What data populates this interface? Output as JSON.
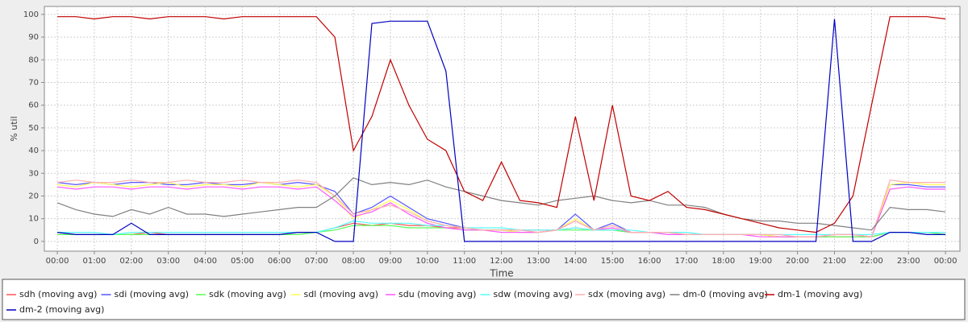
{
  "chart_data": {
    "type": "line",
    "x_label": "Time",
    "y_label": "% util",
    "x": [
      0,
      0.5,
      1,
      1.5,
      2,
      2.5,
      3,
      3.5,
      4,
      4.5,
      5,
      5.5,
      6,
      6.5,
      7,
      7.5,
      8,
      8.5,
      9,
      9.5,
      10,
      10.5,
      11,
      11.5,
      12,
      12.5,
      13,
      13.5,
      14,
      14.5,
      15,
      15.5,
      16,
      16.5,
      17,
      17.5,
      18,
      18.5,
      19,
      19.5,
      20,
      20.5,
      21,
      21.5,
      22,
      22.5,
      23,
      23.5,
      24
    ],
    "xlim": [
      -0.35,
      24.39
    ],
    "xticks": [
      {
        "value": 0,
        "label": "00:00"
      },
      {
        "value": 1,
        "label": "01:00"
      },
      {
        "value": 2,
        "label": "02:00"
      },
      {
        "value": 3,
        "label": "03:00"
      },
      {
        "value": 4,
        "label": "04:00"
      },
      {
        "value": 5,
        "label": "05:00"
      },
      {
        "value": 6,
        "label": "06:00"
      },
      {
        "value": 7,
        "label": "07:00"
      },
      {
        "value": 8,
        "label": "08:00"
      },
      {
        "value": 9,
        "label": "09:00"
      },
      {
        "value": 10,
        "label": "10:00"
      },
      {
        "value": 11,
        "label": "11:00"
      },
      {
        "value": 12,
        "label": "12:00"
      },
      {
        "value": 13,
        "label": "13:00"
      },
      {
        "value": 14,
        "label": "14:00"
      },
      {
        "value": 15,
        "label": "15:00"
      },
      {
        "value": 16,
        "label": "16:00"
      },
      {
        "value": 17,
        "label": "17:00"
      },
      {
        "value": 18,
        "label": "18:00"
      },
      {
        "value": 19,
        "label": "19:00"
      },
      {
        "value": 20,
        "label": "20:00"
      },
      {
        "value": 21,
        "label": "21:00"
      },
      {
        "value": 22,
        "label": "22:00"
      },
      {
        "value": 23,
        "label": "23:00"
      },
      {
        "value": 24,
        "label": "00:00"
      }
    ],
    "ylim": [
      -4.3,
      103.5
    ],
    "yticks": [
      0,
      10,
      20,
      30,
      40,
      50,
      60,
      70,
      80,
      90,
      100
    ],
    "grid": true,
    "series": [
      {
        "name": "sdh (moving avg)",
        "color": "#ff5555",
        "values": [
          4,
          3,
          3,
          3,
          3,
          4,
          3,
          3,
          3,
          3,
          3,
          3,
          3,
          4,
          4,
          6,
          8,
          7,
          8,
          7,
          7,
          6,
          6,
          5,
          5,
          5,
          5,
          5,
          6,
          5,
          5,
          4,
          4,
          4,
          3,
          3,
          3,
          3,
          3,
          2,
          2,
          2,
          2,
          2,
          2,
          4,
          4,
          4,
          4
        ]
      },
      {
        "name": "sdi (moving avg)",
        "color": "#5555ff",
        "values": [
          26,
          25,
          26,
          25,
          26,
          26,
          25,
          25,
          26,
          25,
          25,
          26,
          25,
          26,
          25,
          22,
          12,
          15,
          20,
          15,
          10,
          8,
          6,
          5,
          5,
          4,
          4,
          5,
          12,
          5,
          8,
          4,
          4,
          4,
          3,
          3,
          3,
          3,
          3,
          2,
          2,
          2,
          3,
          3,
          2,
          25,
          25,
          24,
          24
        ]
      },
      {
        "name": "sdk (moving avg)",
        "color": "#55ff55",
        "values": [
          3,
          3,
          3,
          3,
          3,
          3,
          3,
          3,
          3,
          3,
          3,
          3,
          3,
          3,
          4,
          5,
          7,
          7,
          7,
          6,
          6,
          6,
          5,
          5,
          5,
          4,
          4,
          5,
          5,
          5,
          5,
          4,
          4,
          4,
          3,
          3,
          3,
          3,
          3,
          2,
          2,
          2,
          2,
          2,
          2,
          4,
          4,
          4,
          3
        ]
      },
      {
        "name": "sdl (moving avg)",
        "color": "#ffff55",
        "values": [
          25,
          24,
          26,
          25,
          24,
          25,
          26,
          24,
          25,
          25,
          24,
          26,
          25,
          24,
          25,
          20,
          10,
          14,
          18,
          14,
          9,
          7,
          6,
          5,
          5,
          4,
          4,
          5,
          10,
          5,
          7,
          4,
          4,
          4,
          3,
          3,
          3,
          3,
          3,
          2,
          2,
          2,
          3,
          3,
          2,
          25,
          26,
          25,
          25
        ]
      },
      {
        "name": "sdu (moving avg)",
        "color": "#ff55ff",
        "values": [
          24,
          23,
          24,
          24,
          23,
          24,
          24,
          23,
          24,
          24,
          23,
          24,
          24,
          23,
          24,
          18,
          11,
          13,
          17,
          12,
          8,
          6,
          5,
          5,
          4,
          4,
          4,
          5,
          9,
          5,
          6,
          4,
          4,
          3,
          3,
          3,
          3,
          3,
          2,
          2,
          2,
          2,
          3,
          3,
          2,
          23,
          24,
          23,
          23
        ]
      },
      {
        "name": "sdw (moving avg)",
        "color": "#55ffff",
        "values": [
          4,
          4,
          4,
          3,
          4,
          4,
          4,
          4,
          4,
          4,
          4,
          4,
          4,
          4,
          4,
          6,
          9,
          8,
          8,
          8,
          7,
          7,
          6,
          6,
          6,
          5,
          5,
          5,
          6,
          5,
          5,
          5,
          4,
          4,
          4,
          3,
          3,
          3,
          3,
          3,
          3,
          3,
          3,
          3,
          3,
          4,
          4,
          4,
          4
        ]
      },
      {
        "name": "sdx (moving avg)",
        "color": "#ffafaf",
        "values": [
          26,
          27,
          26,
          26,
          27,
          26,
          26,
          27,
          26,
          26,
          27,
          26,
          26,
          27,
          26,
          20,
          12,
          14,
          16,
          13,
          9,
          7,
          6,
          5,
          5,
          5,
          4,
          5,
          9,
          5,
          7,
          4,
          4,
          4,
          3,
          3,
          3,
          3,
          3,
          3,
          2,
          2,
          3,
          3,
          2,
          27,
          26,
          26,
          26
        ]
      },
      {
        "name": "dm-0 (moving avg)",
        "color": "#808080",
        "values": [
          17,
          14,
          12,
          11,
          14,
          12,
          15,
          12,
          12,
          11,
          12,
          13,
          14,
          15,
          15,
          20,
          28,
          25,
          26,
          25,
          27,
          24,
          22,
          20,
          18,
          17,
          16,
          18,
          19,
          20,
          18,
          17,
          18,
          16,
          16,
          15,
          12,
          10,
          9,
          9,
          8,
          8,
          7,
          6,
          5,
          15,
          14,
          14,
          13
        ]
      },
      {
        "name": "dm-1 (moving avg)",
        "color": "#c00000",
        "values": [
          99,
          99,
          98,
          99,
          99,
          98,
          99,
          99,
          99,
          98,
          99,
          99,
          99,
          99,
          99,
          90,
          40,
          55,
          80,
          60,
          45,
          40,
          22,
          18,
          35,
          18,
          17,
          15,
          55,
          18,
          60,
          20,
          18,
          22,
          15,
          14,
          12,
          10,
          8,
          6,
          5,
          4,
          8,
          20,
          60,
          99,
          99,
          99,
          98
        ]
      },
      {
        "name": "dm-2 (moving avg)",
        "color": "#0000c0",
        "values": [
          4,
          3,
          3,
          3,
          8,
          3,
          3,
          3,
          3,
          3,
          3,
          3,
          3,
          4,
          4,
          0,
          0,
          96,
          97,
          97,
          97,
          75,
          0,
          0,
          0,
          0,
          0,
          0,
          0,
          0,
          0,
          0,
          0,
          0,
          0,
          0,
          0,
          0,
          0,
          0,
          0,
          0,
          98,
          0,
          0,
          4,
          4,
          3,
          3
        ]
      }
    ]
  }
}
